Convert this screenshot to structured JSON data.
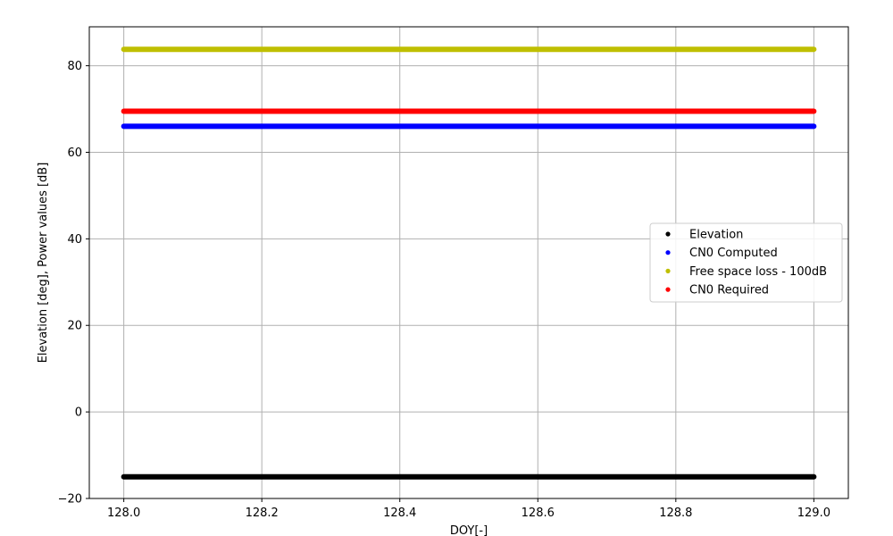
{
  "chart_data": {
    "type": "scatter",
    "title": "",
    "xlabel": "DOY[-]",
    "ylabel": "Elevation [deg], Power values [dB]",
    "xlim": [
      127.95,
      129.05
    ],
    "ylim": [
      -20,
      89
    ],
    "x_ticks": [
      128.0,
      128.2,
      128.4,
      128.6,
      128.8,
      129.0
    ],
    "x_tick_labels": [
      "128.0",
      "128.2",
      "128.4",
      "128.6",
      "128.8",
      "129.0"
    ],
    "y_ticks": [
      -20,
      0,
      20,
      40,
      60,
      80
    ],
    "y_tick_labels": [
      "−20",
      "0",
      "20",
      "40",
      "60",
      "80"
    ],
    "grid": true,
    "legend_position": "center-right",
    "x_start": 128.0,
    "x_end": 129.0,
    "series": [
      {
        "name": "Elevation",
        "color": "#000000",
        "value": -15
      },
      {
        "name": "CN0 Computed",
        "color": "#0000ff",
        "value": 66
      },
      {
        "name": "Free space loss - 100dB",
        "color": "#bfbf00",
        "value": 83.8
      },
      {
        "name": "CN0 Required",
        "color": "#ff0000",
        "value": 69.5
      }
    ]
  }
}
